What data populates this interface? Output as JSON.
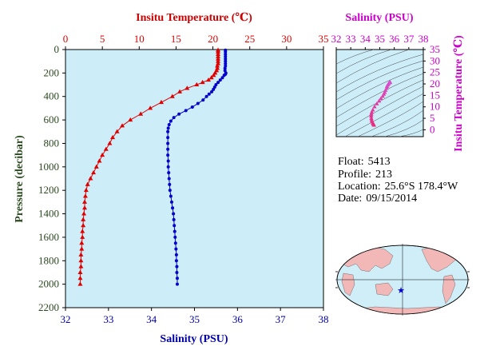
{
  "info": {
    "float_label": "Float:",
    "float_value": "5413",
    "profile_label": "Profile:",
    "profile_value": "213",
    "location_label": "Location:",
    "location_value": "25.6°S  178.4°W",
    "date_label": "Date:",
    "date_value": "09/15/2014"
  },
  "footer_note": "",
  "colors": {
    "plot_bg": "#cdeef8",
    "temperature": "#e00000",
    "salinity": "#0000cc",
    "ts_magenta": "#cc00cc",
    "pressure_axis": "#2b4a1f",
    "map_ocean": "#cfeef8",
    "map_land": "#f2b8b8"
  },
  "chart_data": [
    {
      "type": "scatter",
      "title": "",
      "top_axis_label": "Insitu Temperature (℃)",
      "bottom_axis_label": "Salinity (PSU)",
      "ylabel": "Pressure (decibar)",
      "y_reversed": true,
      "ylim": [
        0,
        2200
      ],
      "temperature_lim": [
        0,
        35
      ],
      "salinity_lim": [
        32,
        38
      ],
      "y_ticks": [
        "0",
        "200",
        "400",
        "600",
        "800",
        "1000",
        "1200",
        "1400",
        "1600",
        "1800",
        "2000",
        "2200"
      ],
      "temperature_ticks": [
        "0",
        "5",
        "10",
        "15",
        "20",
        "25",
        "30",
        "35"
      ],
      "salinity_ticks": [
        "32",
        "33",
        "34",
        "35",
        "36",
        "37",
        "38"
      ],
      "series": [
        {
          "variable": "temperature",
          "marker": "triangle",
          "points": [
            [
              20.7,
              5
            ],
            [
              20.7,
              20
            ],
            [
              20.7,
              40
            ],
            [
              20.7,
              60
            ],
            [
              20.7,
              80
            ],
            [
              20.7,
              100
            ],
            [
              20.7,
              120
            ],
            [
              20.6,
              140
            ],
            [
              20.6,
              160
            ],
            [
              20.5,
              180
            ],
            [
              20.3,
              200
            ],
            [
              20.1,
              220
            ],
            [
              19.8,
              240
            ],
            [
              19.4,
              260
            ],
            [
              18.6,
              280
            ],
            [
              17.8,
              300
            ],
            [
              16.5,
              330
            ],
            [
              15.5,
              360
            ],
            [
              14.5,
              400
            ],
            [
              13.0,
              450
            ],
            [
              11.5,
              500
            ],
            [
              10.2,
              550
            ],
            [
              8.8,
              600
            ],
            [
              7.7,
              650
            ],
            [
              7.0,
              700
            ],
            [
              6.4,
              750
            ],
            [
              6.0,
              800
            ],
            [
              5.5,
              850
            ],
            [
              5.0,
              900
            ],
            [
              4.6,
              950
            ],
            [
              4.2,
              1000
            ],
            [
              3.8,
              1050
            ],
            [
              3.4,
              1100
            ],
            [
              3.0,
              1150
            ],
            [
              2.8,
              1200
            ],
            [
              2.7,
              1250
            ],
            [
              2.6,
              1300
            ],
            [
              2.6,
              1350
            ],
            [
              2.5,
              1400
            ],
            [
              2.4,
              1450
            ],
            [
              2.4,
              1500
            ],
            [
              2.3,
              1550
            ],
            [
              2.3,
              1600
            ],
            [
              2.2,
              1650
            ],
            [
              2.2,
              1700
            ],
            [
              2.1,
              1750
            ],
            [
              2.1,
              1800
            ],
            [
              2.1,
              1850
            ],
            [
              2.0,
              1900
            ],
            [
              2.0,
              1950
            ],
            [
              2.0,
              2000
            ]
          ]
        },
        {
          "variable": "salinity",
          "marker": "dot",
          "points": [
            [
              35.72,
              5
            ],
            [
              35.72,
              20
            ],
            [
              35.72,
              40
            ],
            [
              35.72,
              60
            ],
            [
              35.72,
              80
            ],
            [
              35.72,
              100
            ],
            [
              35.72,
              120
            ],
            [
              35.72,
              140
            ],
            [
              35.71,
              160
            ],
            [
              35.71,
              180
            ],
            [
              35.73,
              200
            ],
            [
              35.72,
              210
            ],
            [
              35.69,
              220
            ],
            [
              35.65,
              240
            ],
            [
              35.6,
              260
            ],
            [
              35.55,
              280
            ],
            [
              35.5,
              300
            ],
            [
              35.47,
              320
            ],
            [
              35.44,
              340
            ],
            [
              35.4,
              360
            ],
            [
              35.34,
              380
            ],
            [
              35.28,
              400
            ],
            [
              35.2,
              430
            ],
            [
              35.08,
              460
            ],
            [
              34.95,
              490
            ],
            [
              34.8,
              520
            ],
            [
              34.64,
              550
            ],
            [
              34.52,
              580
            ],
            [
              34.45,
              610
            ],
            [
              34.41,
              640
            ],
            [
              34.39,
              670
            ],
            [
              34.38,
              700
            ],
            [
              34.38,
              750
            ],
            [
              34.38,
              800
            ],
            [
              34.38,
              850
            ],
            [
              34.38,
              900
            ],
            [
              34.39,
              950
            ],
            [
              34.39,
              1000
            ],
            [
              34.4,
              1050
            ],
            [
              34.41,
              1100
            ],
            [
              34.42,
              1150
            ],
            [
              34.43,
              1200
            ],
            [
              34.45,
              1250
            ],
            [
              34.47,
              1300
            ],
            [
              34.49,
              1350
            ],
            [
              34.51,
              1400
            ],
            [
              34.52,
              1450
            ],
            [
              34.53,
              1500
            ],
            [
              34.54,
              1550
            ],
            [
              34.55,
              1600
            ],
            [
              34.56,
              1650
            ],
            [
              34.57,
              1700
            ],
            [
              34.58,
              1750
            ],
            [
              34.58,
              1800
            ],
            [
              34.59,
              1850
            ],
            [
              34.59,
              1900
            ],
            [
              34.6,
              1950
            ],
            [
              34.6,
              2000
            ]
          ]
        }
      ]
    },
    {
      "type": "scatter",
      "title": "",
      "xlabel": "Salinity (PSU)",
      "ylabel": "Insitu Temperature (℃)",
      "xlim": [
        32,
        38
      ],
      "ylim": [
        -3,
        35
      ],
      "x_ticks": [
        "32",
        "33",
        "34",
        "35",
        "36",
        "37",
        "38"
      ],
      "y_ticks": [
        "0",
        "5",
        "10",
        "15",
        "20",
        "25",
        "30",
        "35"
      ],
      "points": [
        [
          34.6,
          2.0
        ],
        [
          34.58,
          2.3
        ],
        [
          34.55,
          2.6
        ],
        [
          34.52,
          3.0
        ],
        [
          34.47,
          3.6
        ],
        [
          34.44,
          4.2
        ],
        [
          34.42,
          5.0
        ],
        [
          34.41,
          6.0
        ],
        [
          34.42,
          6.8
        ],
        [
          34.45,
          7.6
        ],
        [
          34.52,
          8.6
        ],
        [
          34.64,
          10.0
        ],
        [
          34.8,
          11.3
        ],
        [
          34.95,
          12.5
        ],
        [
          35.08,
          13.6
        ],
        [
          35.2,
          14.6
        ],
        [
          35.28,
          15.5
        ],
        [
          35.34,
          16.3
        ],
        [
          35.4,
          17.2
        ],
        [
          35.47,
          18.1
        ],
        [
          35.5,
          18.9
        ],
        [
          35.55,
          19.5
        ],
        [
          35.6,
          20.0
        ],
        [
          35.65,
          20.4
        ],
        [
          35.69,
          20.6
        ],
        [
          35.72,
          20.7
        ]
      ]
    }
  ]
}
